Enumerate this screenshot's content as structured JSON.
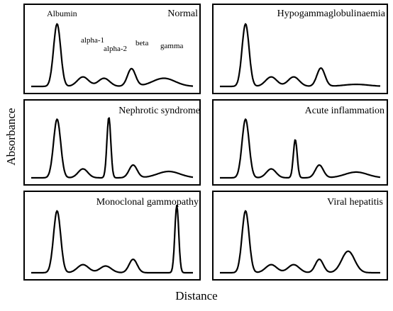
{
  "figure": {
    "xlabel": "Distance",
    "ylabel": "Absorbance"
  },
  "chart_data": [
    {
      "type": "line",
      "title": "Normal",
      "peak_labels": [
        "Albumin",
        "alpha-1",
        "alpha-2",
        "beta",
        "gamma"
      ],
      "peaks": [
        [
          0.16,
          0.92,
          0.022
        ],
        [
          0.32,
          0.14,
          0.035
        ],
        [
          0.45,
          0.12,
          0.035
        ],
        [
          0.62,
          0.26,
          0.025
        ],
        [
          0.82,
          0.12,
          0.07
        ]
      ]
    },
    {
      "type": "line",
      "title": "Hypogammaglobulinaemia",
      "peaks": [
        [
          0.16,
          0.92,
          0.022
        ],
        [
          0.32,
          0.14,
          0.035
        ],
        [
          0.46,
          0.14,
          0.035
        ],
        [
          0.63,
          0.27,
          0.025
        ],
        [
          0.85,
          0.03,
          0.08
        ]
      ]
    },
    {
      "type": "line",
      "title": "Nephrotic syndrome",
      "peaks": [
        [
          0.16,
          0.92,
          0.022
        ],
        [
          0.32,
          0.14,
          0.03
        ],
        [
          0.48,
          0.95,
          0.012
        ],
        [
          0.63,
          0.2,
          0.025
        ],
        [
          0.85,
          0.1,
          0.07
        ]
      ]
    },
    {
      "type": "line",
      "title": "Acute inflammation",
      "peaks": [
        [
          0.16,
          0.92,
          0.022
        ],
        [
          0.32,
          0.14,
          0.03
        ],
        [
          0.47,
          0.6,
          0.012
        ],
        [
          0.62,
          0.2,
          0.025
        ],
        [
          0.85,
          0.09,
          0.07
        ]
      ]
    },
    {
      "type": "line",
      "title": "Monoclonal gammopathy",
      "peaks": [
        [
          0.16,
          0.92,
          0.022
        ],
        [
          0.32,
          0.12,
          0.035
        ],
        [
          0.46,
          0.1,
          0.035
        ],
        [
          0.63,
          0.2,
          0.025
        ],
        [
          0.9,
          1.0,
          0.012
        ]
      ]
    },
    {
      "type": "line",
      "title": "Viral hepatitis",
      "peaks": [
        [
          0.16,
          0.92,
          0.022
        ],
        [
          0.32,
          0.12,
          0.035
        ],
        [
          0.46,
          0.12,
          0.035
        ],
        [
          0.62,
          0.2,
          0.025
        ],
        [
          0.8,
          0.32,
          0.04
        ]
      ]
    }
  ]
}
